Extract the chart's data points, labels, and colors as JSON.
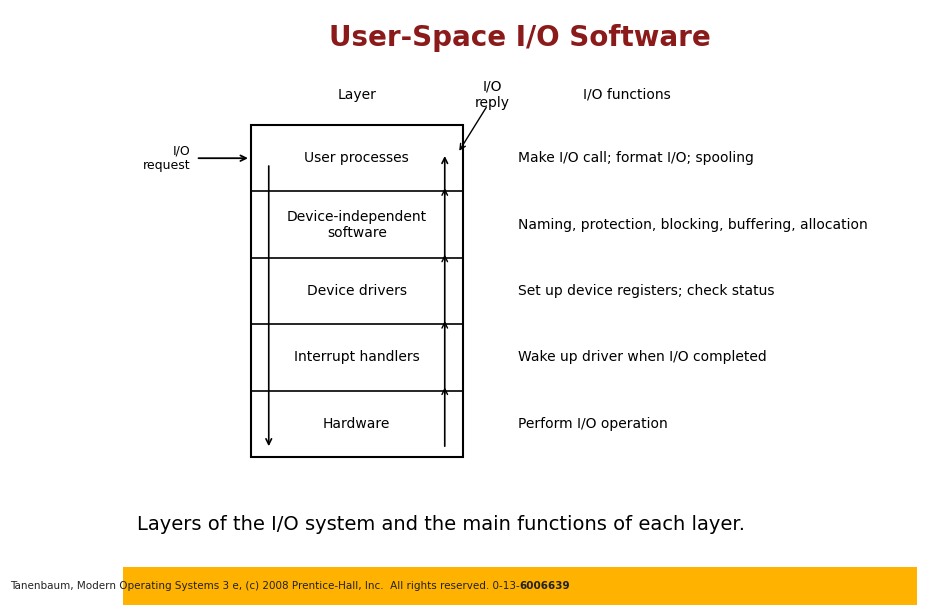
{
  "title": "User-Space I/O Software",
  "title_color": "#8B1A1A",
  "title_fontsize": 20,
  "subtitle": "Layers of the I/O system and the main functions of each layer.",
  "subtitle_fontsize": 14,
  "footer_normal": "Tanenbaum, Modern Operating Systems 3 e, (c) 2008 Prentice-Hall, Inc.  All rights reserved. 0-13-",
  "footer_bold": "6006639",
  "footer_color": "#222222",
  "footer_bg": "#FFB300",
  "footer_fontsize": 7.5,
  "bg_color": "#FFFFFF",
  "layers": [
    {
      "label": "User processes",
      "func": "Make I/O call; format I/O; spooling"
    },
    {
      "label": "Device-independent\nsoftware",
      "func": "Naming, protection, blocking, buffering, allocation"
    },
    {
      "label": "Device drivers",
      "func": "Set up device registers; check status"
    },
    {
      "label": "Interrupt handlers",
      "func": "Wake up driver when I/O completed"
    },
    {
      "label": "Hardware",
      "func": "Perform I/O operation"
    }
  ],
  "col_label": "Layer",
  "col_reply": "I/O\nreply",
  "col_func": "I/O functions",
  "io_request_label": "I/O\nrequest",
  "header_fontsize": 10,
  "layer_fontsize": 10,
  "func_fontsize": 10
}
